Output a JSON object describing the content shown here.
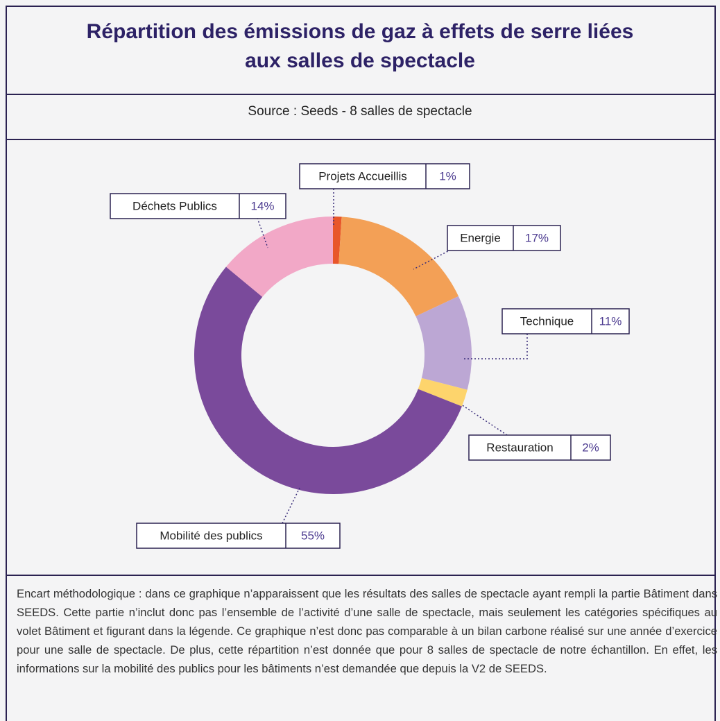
{
  "chart_data": {
    "type": "donut",
    "title": "Répartition des émissions de gaz à effets de serre liées aux salles de spectacle",
    "subtitle": "Source : Seeds - 8 salles de spectacle",
    "categories": [
      "Projets Accueillis",
      "Energie",
      "Technique",
      "Restauration",
      "Mobilité des publics",
      "Déchets Publics"
    ],
    "values": [
      1,
      17,
      11,
      2,
      55,
      14
    ],
    "value_labels": [
      "1%",
      "17%",
      "11%",
      "2%",
      "55%",
      "14%"
    ],
    "colors": [
      "#e8562a",
      "#f3a056",
      "#bca7d4",
      "#fdd46c",
      "#7a4a9b",
      "#f2a8c7"
    ],
    "footnote": "Encart méthodologique : dans ce graphique n’apparaissent que les résultats des salles de spectacle ayant rempli la partie Bâtiment dans SEEDS. Cette partie n’inclut donc pas l’ensemble de l’activité d’une salle de spectacle, mais seulement les catégories spécifiques au volet Bâtiment et figurant dans la légende. Ce graphique n’est donc pas comparable à un bilan carbone réalisé sur une année d’exercice pour une salle de spectacle. De plus, cette répartition n’est donnée que pour 8 salles de spectacle de notre échantillon. En effet, les informations sur la mobilité des publics pour les bâtiments n’est demandée que depuis la V2 de SEEDS."
  }
}
